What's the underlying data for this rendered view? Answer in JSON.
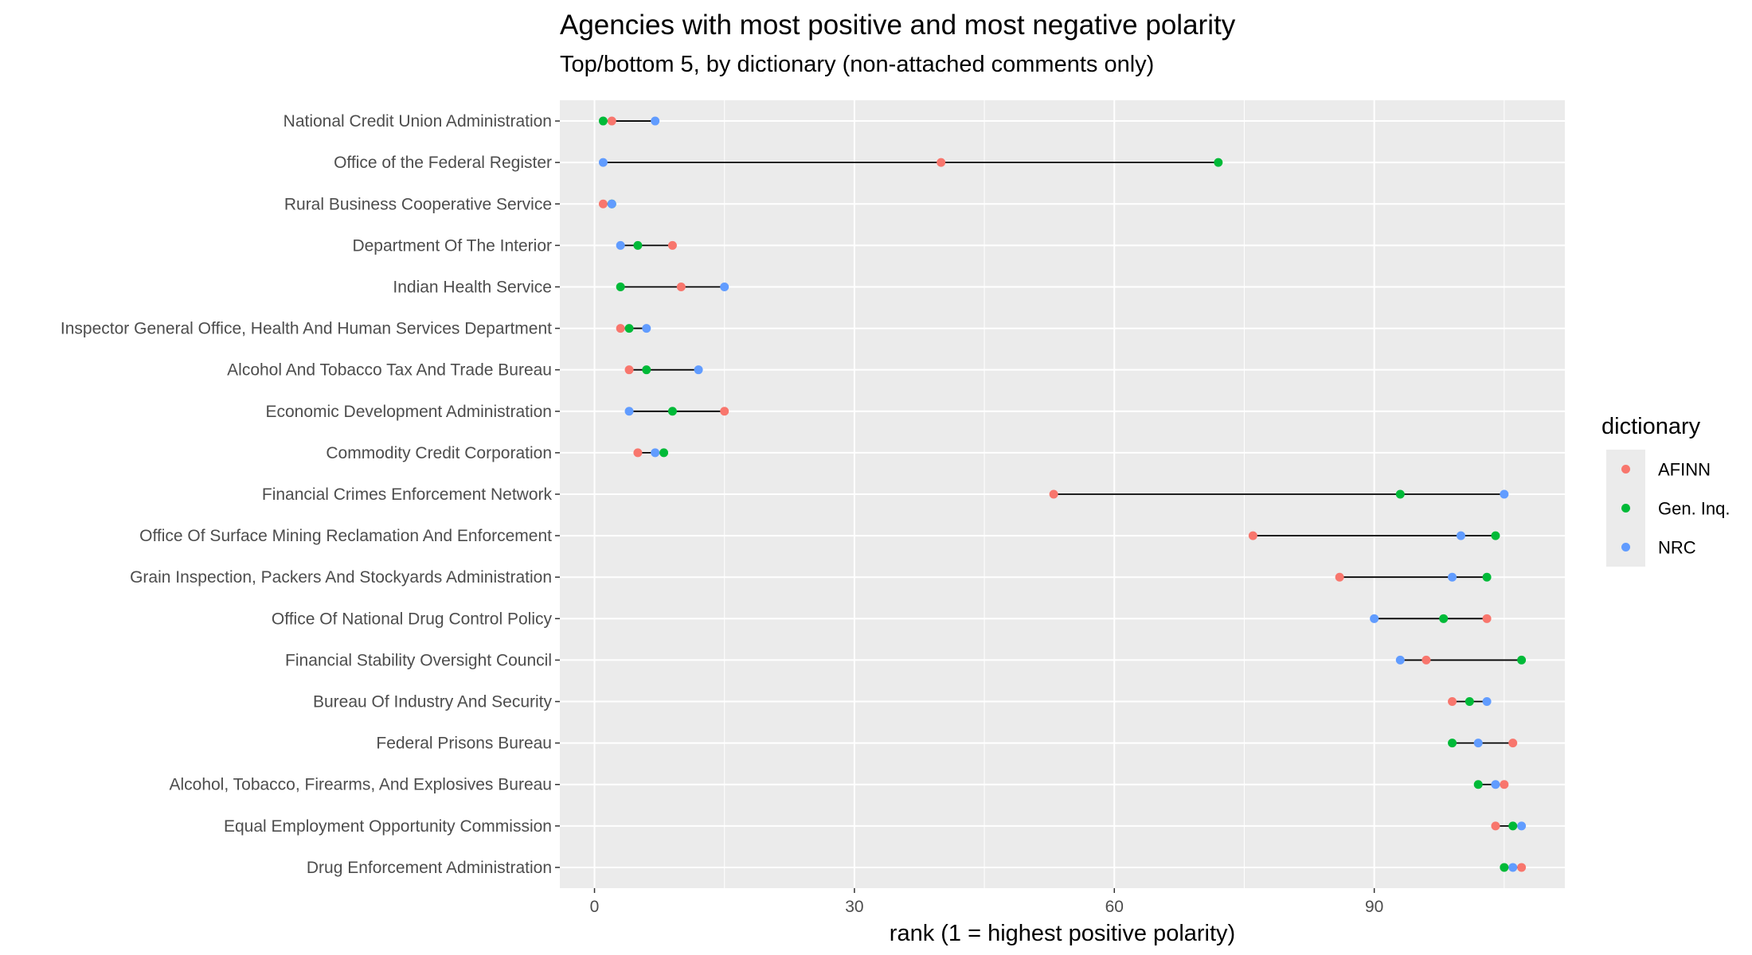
{
  "chart_data": {
    "type": "dumbbell",
    "title": "Agencies with most positive and most negative polarity",
    "subtitle": "Top/bottom 5, by dictionary (non-attached comments only)",
    "xlabel": "rank (1 = highest positive polarity)",
    "xlim": [
      -4,
      112
    ],
    "xticks": [
      0,
      30,
      60,
      90
    ],
    "grid": true,
    "legend": {
      "title": "dictionary",
      "position": "right",
      "entries": [
        "AFINN",
        "Gen. Inq.",
        "NRC"
      ]
    },
    "series_colors": {
      "AFINN": "#F8766D",
      "Gen. Inq.": "#00BA38",
      "NRC": "#619CFF"
    },
    "agencies": [
      {
        "name": "National Credit Union Administration",
        "AFINN": 2,
        "Gen. Inq.": 1,
        "NRC": 7
      },
      {
        "name": "Office of the Federal Register",
        "AFINN": 40,
        "Gen. Inq.": 72,
        "NRC": 1
      },
      {
        "name": "Rural Business Cooperative Service",
        "AFINN": 1,
        "Gen. Inq.": 2,
        "NRC": 2
      },
      {
        "name": "Department Of The Interior",
        "AFINN": 9,
        "Gen. Inq.": 5,
        "NRC": 3
      },
      {
        "name": "Indian Health Service",
        "AFINN": 10,
        "Gen. Inq.": 3,
        "NRC": 15
      },
      {
        "name": "Inspector General Office, Health And Human Services Department",
        "AFINN": 3,
        "Gen. Inq.": 4,
        "NRC": 6
      },
      {
        "name": "Alcohol And Tobacco Tax And Trade Bureau",
        "AFINN": 4,
        "Gen. Inq.": 6,
        "NRC": 12
      },
      {
        "name": "Economic Development Administration",
        "AFINN": 15,
        "Gen. Inq.": 9,
        "NRC": 4
      },
      {
        "name": "Commodity Credit Corporation",
        "AFINN": 5,
        "Gen. Inq.": 8,
        "NRC": 7
      },
      {
        "name": "Financial Crimes Enforcement Network",
        "AFINN": 53,
        "Gen. Inq.": 93,
        "NRC": 105
      },
      {
        "name": "Office Of Surface Mining Reclamation And Enforcement",
        "AFINN": 76,
        "Gen. Inq.": 104,
        "NRC": 100
      },
      {
        "name": "Grain Inspection, Packers And Stockyards Administration",
        "AFINN": 86,
        "Gen. Inq.": 103,
        "NRC": 99
      },
      {
        "name": "Office Of National Drug Control Policy",
        "AFINN": 103,
        "Gen. Inq.": 98,
        "NRC": 90
      },
      {
        "name": "Financial Stability Oversight Council",
        "AFINN": 96,
        "Gen. Inq.": 107,
        "NRC": 93
      },
      {
        "name": "Bureau Of Industry And Security",
        "AFINN": 99,
        "Gen. Inq.": 101,
        "NRC": 103
      },
      {
        "name": "Federal Prisons Bureau",
        "AFINN": 106,
        "Gen. Inq.": 99,
        "NRC": 102
      },
      {
        "name": "Alcohol, Tobacco, Firearms, And Explosives Bureau",
        "AFINN": 105,
        "Gen. Inq.": 102,
        "NRC": 104
      },
      {
        "name": "Equal Employment Opportunity Commission",
        "AFINN": 104,
        "Gen. Inq.": 106,
        "NRC": 107
      },
      {
        "name": "Drug Enforcement Administration",
        "AFINN": 107,
        "Gen. Inq.": 105,
        "NRC": 106
      }
    ]
  }
}
